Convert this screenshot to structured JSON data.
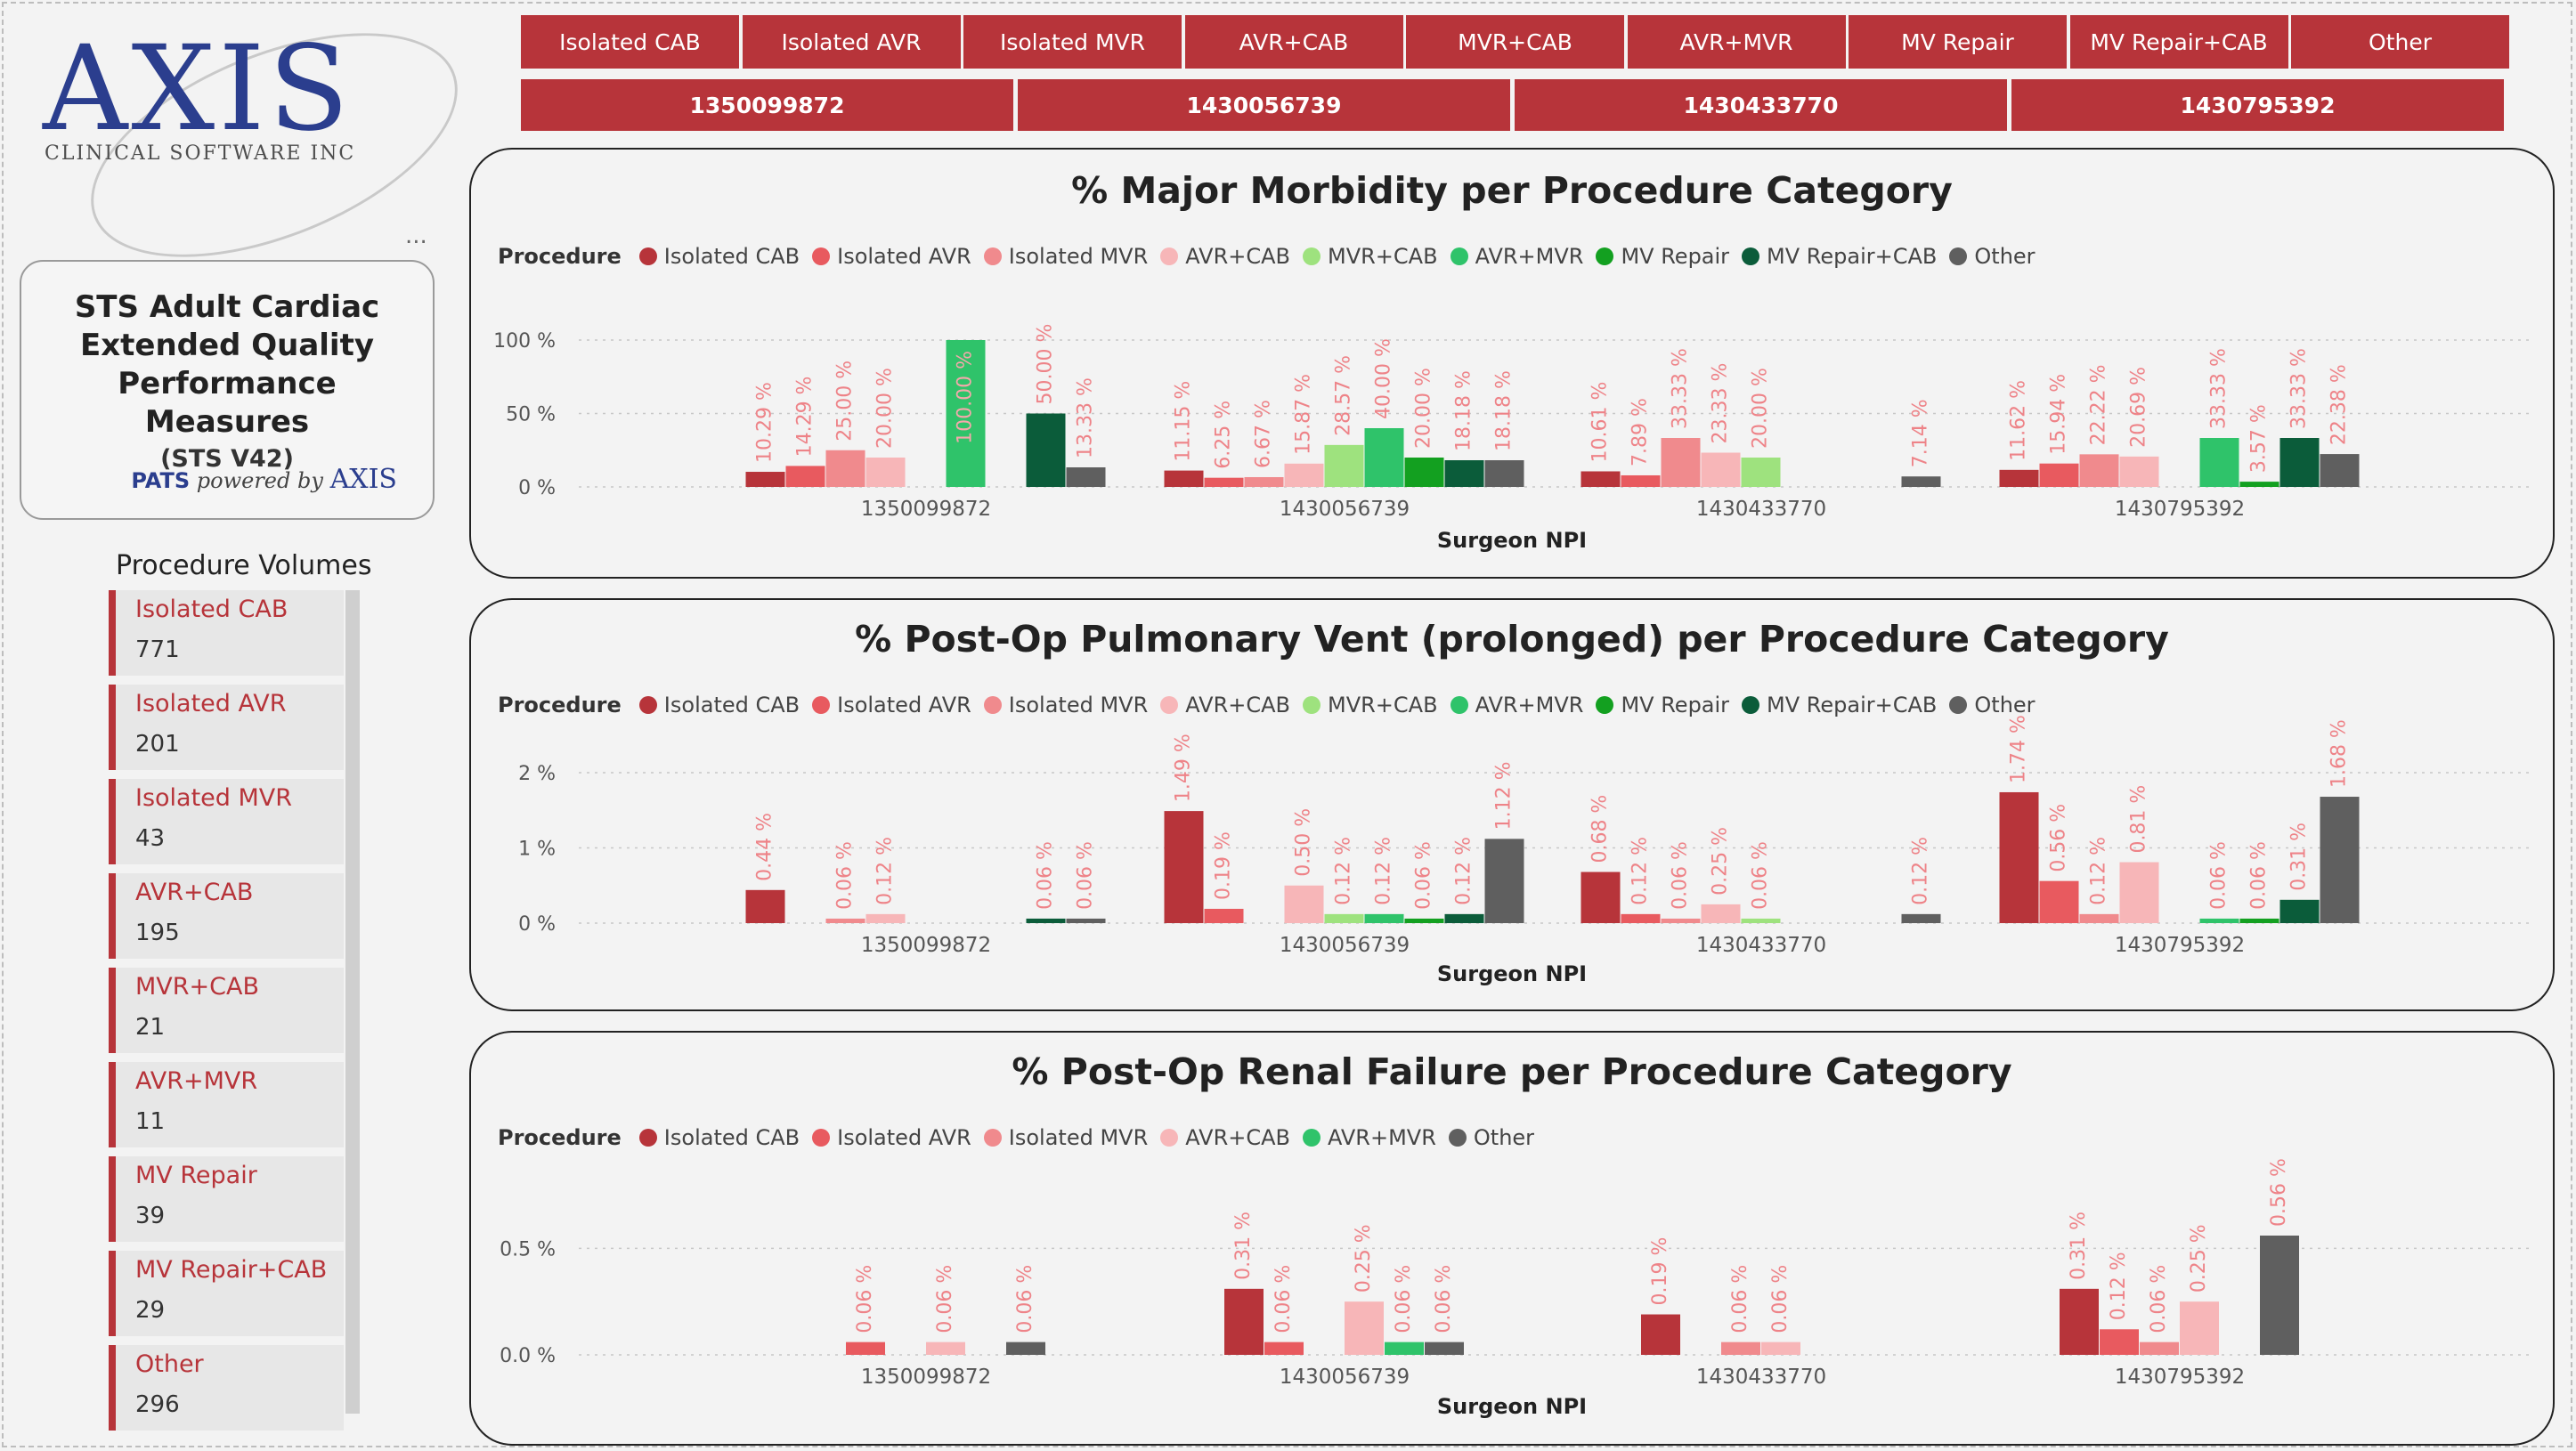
{
  "brand": {
    "logo_text": "AXIS",
    "logo_sub": "CLINICAL SOFTWARE INC",
    "more": "..."
  },
  "report_card": {
    "title": "STS Adult Cardiac Extended Quality Performance Measures",
    "version": "(STS V42)",
    "powered_pats": "PATS",
    "powered_by": "powered by",
    "powered_brand": "AXIS"
  },
  "volumes": {
    "title": "Procedure Volumes",
    "items": [
      {
        "name": "Isolated CAB",
        "count": "771"
      },
      {
        "name": "Isolated AVR",
        "count": "201"
      },
      {
        "name": "Isolated MVR",
        "count": "43"
      },
      {
        "name": "AVR+CAB",
        "count": "195"
      },
      {
        "name": "MVR+CAB",
        "count": "21"
      },
      {
        "name": "AVR+MVR",
        "count": "11"
      },
      {
        "name": "MV Repair",
        "count": "39"
      },
      {
        "name": "MV Repair+CAB",
        "count": "29"
      },
      {
        "name": "Other",
        "count": "296"
      }
    ]
  },
  "procedure_slicer": [
    "Isolated CAB",
    "Isolated AVR",
    "Isolated MVR",
    "AVR+CAB",
    "MVR+CAB",
    "AVR+MVR",
    "MV Repair",
    "MV Repair+CAB",
    "Other"
  ],
  "npi_slicer": [
    "1350099872",
    "1430056739",
    "1430433770",
    "1430795392"
  ],
  "colors": {
    "Isolated CAB": "#b7343a",
    "Isolated AVR": "#e85a5f",
    "Isolated MVR": "#f08a8d",
    "AVR+CAB": "#f7b6b8",
    "MVR+CAB": "#9ee27e",
    "AVR+MVR": "#2fc36a",
    "MV Repair": "#13a020",
    "MV Repair+CAB": "#0b5c3a",
    "Other": "#5f5f5f"
  },
  "legend_label": "Procedure",
  "chart_data": [
    {
      "type": "bar",
      "title": "% Major Morbidity per Procedure Category",
      "xlabel": "Surgeon NPI",
      "ylabel": "",
      "ylim": [
        0,
        100
      ],
      "yticks": [
        {
          "v": 0,
          "label": "0 %"
        },
        {
          "v": 50,
          "label": "50 %"
        },
        {
          "v": 100,
          "label": "100 %"
        }
      ],
      "categories": [
        "1350099872",
        "1430056739",
        "1430433770",
        "1430795392"
      ],
      "legend": [
        "Isolated CAB",
        "Isolated AVR",
        "Isolated MVR",
        "AVR+CAB",
        "MVR+CAB",
        "AVR+MVR",
        "MV Repair",
        "MV Repair+CAB",
        "Other"
      ],
      "series": [
        {
          "name": "Isolated CAB",
          "values": [
            10.29,
            11.15,
            10.61,
            11.62
          ],
          "labels": [
            "10.29 %",
            "11.15 %",
            "10.61 %",
            "11.62 %"
          ]
        },
        {
          "name": "Isolated AVR",
          "values": [
            14.29,
            6.25,
            7.89,
            15.94
          ],
          "labels": [
            "14.29 %",
            "6.25 %",
            "7.89 %",
            "15.94 %"
          ]
        },
        {
          "name": "Isolated MVR",
          "values": [
            25.0,
            6.67,
            33.33,
            22.22
          ],
          "labels": [
            "25.00 %",
            "6.67 %",
            "33.33 %",
            "22.22 %"
          ]
        },
        {
          "name": "AVR+CAB",
          "values": [
            20.0,
            15.87,
            23.33,
            20.69
          ],
          "labels": [
            "20.00 %",
            "15.87 %",
            "23.33 %",
            "20.69 %"
          ]
        },
        {
          "name": "MVR+CAB",
          "values": [
            null,
            28.57,
            20.0,
            null
          ],
          "labels": [
            "",
            "28.57 %",
            "20.00 %",
            ""
          ]
        },
        {
          "name": "AVR+MVR",
          "values": [
            100.0,
            40.0,
            null,
            33.33
          ],
          "labels": [
            "100.00 %",
            "40.00 %",
            "",
            "33.33 %"
          ]
        },
        {
          "name": "MV Repair",
          "values": [
            null,
            20.0,
            null,
            3.57
          ],
          "labels": [
            "",
            "20.00 %",
            "",
            "3.57 %"
          ]
        },
        {
          "name": "MV Repair+CAB",
          "values": [
            50.0,
            18.18,
            null,
            33.33
          ],
          "labels": [
            "50.00 %",
            "18.18 %",
            "",
            "33.33 %"
          ]
        },
        {
          "name": "Other",
          "values": [
            13.33,
            18.18,
            7.14,
            22.38
          ],
          "labels": [
            "13.33 %",
            "18.18 %",
            "7.14 %",
            "22.38 %"
          ]
        }
      ]
    },
    {
      "type": "bar",
      "title": "% Post-Op Pulmonary Vent (prolonged) per Procedure Category",
      "xlabel": "Surgeon NPI",
      "ylabel": "",
      "ylim": [
        0,
        2
      ],
      "yticks": [
        {
          "v": 0,
          "label": "0 %"
        },
        {
          "v": 1,
          "label": "1 %"
        },
        {
          "v": 2,
          "label": "2 %"
        }
      ],
      "categories": [
        "1350099872",
        "1430056739",
        "1430433770",
        "1430795392"
      ],
      "legend": [
        "Isolated CAB",
        "Isolated AVR",
        "Isolated MVR",
        "AVR+CAB",
        "MVR+CAB",
        "AVR+MVR",
        "MV Repair",
        "MV Repair+CAB",
        "Other"
      ],
      "series": [
        {
          "name": "Isolated CAB",
          "values": [
            0.44,
            1.49,
            0.68,
            1.74
          ],
          "labels": [
            "0.44 %",
            "1.49 %",
            "0.68 %",
            "1.74 %"
          ]
        },
        {
          "name": "Isolated AVR",
          "values": [
            null,
            0.19,
            0.12,
            0.56
          ],
          "labels": [
            "",
            "0.19 %",
            "0.12 %",
            "0.56 %"
          ]
        },
        {
          "name": "Isolated MVR",
          "values": [
            0.06,
            null,
            0.06,
            0.12
          ],
          "labels": [
            "0.06 %",
            "",
            "0.06 %",
            "0.12 %"
          ]
        },
        {
          "name": "AVR+CAB",
          "values": [
            0.12,
            0.5,
            0.25,
            0.81
          ],
          "labels": [
            "0.12 %",
            "0.50 %",
            "0.25 %",
            "0.81 %"
          ]
        },
        {
          "name": "MVR+CAB",
          "values": [
            null,
            0.12,
            0.06,
            null
          ],
          "labels": [
            "",
            "0.12 %",
            "0.06 %",
            ""
          ]
        },
        {
          "name": "AVR+MVR",
          "values": [
            null,
            0.12,
            null,
            0.06
          ],
          "labels": [
            "",
            "0.12 %",
            "",
            "0.06 %"
          ]
        },
        {
          "name": "MV Repair",
          "values": [
            null,
            0.06,
            null,
            0.06
          ],
          "labels": [
            "",
            "0.06 %",
            "",
            "0.06 %"
          ]
        },
        {
          "name": "MV Repair+CAB",
          "values": [
            0.06,
            0.12,
            null,
            0.31
          ],
          "labels": [
            "0.06 %",
            "0.12 %",
            "",
            "0.31 %"
          ]
        },
        {
          "name": "Other",
          "values": [
            0.06,
            1.12,
            0.12,
            1.68
          ],
          "labels": [
            "0.06 %",
            "1.12 %",
            "0.12 %",
            "1.68 %"
          ]
        }
      ]
    },
    {
      "type": "bar",
      "title": "% Post-Op Renal Failure per Procedure Category",
      "xlabel": "Surgeon NPI",
      "ylabel": "",
      "ylim": [
        0,
        0.56
      ],
      "yticks": [
        {
          "v": 0,
          "label": "0.0 %"
        },
        {
          "v": 0.5,
          "label": "0.5 %"
        }
      ],
      "categories": [
        "1350099872",
        "1430056739",
        "1430433770",
        "1430795392"
      ],
      "legend": [
        "Isolated CAB",
        "Isolated AVR",
        "Isolated MVR",
        "AVR+CAB",
        "AVR+MVR",
        "Other"
      ],
      "series": [
        {
          "name": "Isolated CAB",
          "values": [
            null,
            0.31,
            0.19,
            0.31
          ],
          "labels": [
            "",
            "0.31 %",
            "0.19 %",
            "0.31 %"
          ]
        },
        {
          "name": "Isolated AVR",
          "values": [
            0.06,
            0.06,
            null,
            0.12
          ],
          "labels": [
            "0.06 %",
            "0.06 %",
            "",
            "0.12 %"
          ]
        },
        {
          "name": "Isolated MVR",
          "values": [
            null,
            null,
            0.06,
            0.06
          ],
          "labels": [
            "",
            "",
            "0.06 %",
            "0.06 %"
          ]
        },
        {
          "name": "AVR+CAB",
          "values": [
            0.06,
            0.25,
            0.06,
            0.25
          ],
          "labels": [
            "0.06 %",
            "0.25 %",
            "0.06 %",
            "0.25 %"
          ]
        },
        {
          "name": "AVR+MVR",
          "values": [
            null,
            0.06,
            null,
            null
          ],
          "labels": [
            "",
            "0.06 %",
            "",
            ""
          ]
        },
        {
          "name": "Other",
          "values": [
            0.06,
            0.06,
            null,
            0.56
          ],
          "labels": [
            "0.06 %",
            "0.06 %",
            "",
            "0.56 %"
          ]
        }
      ]
    }
  ]
}
